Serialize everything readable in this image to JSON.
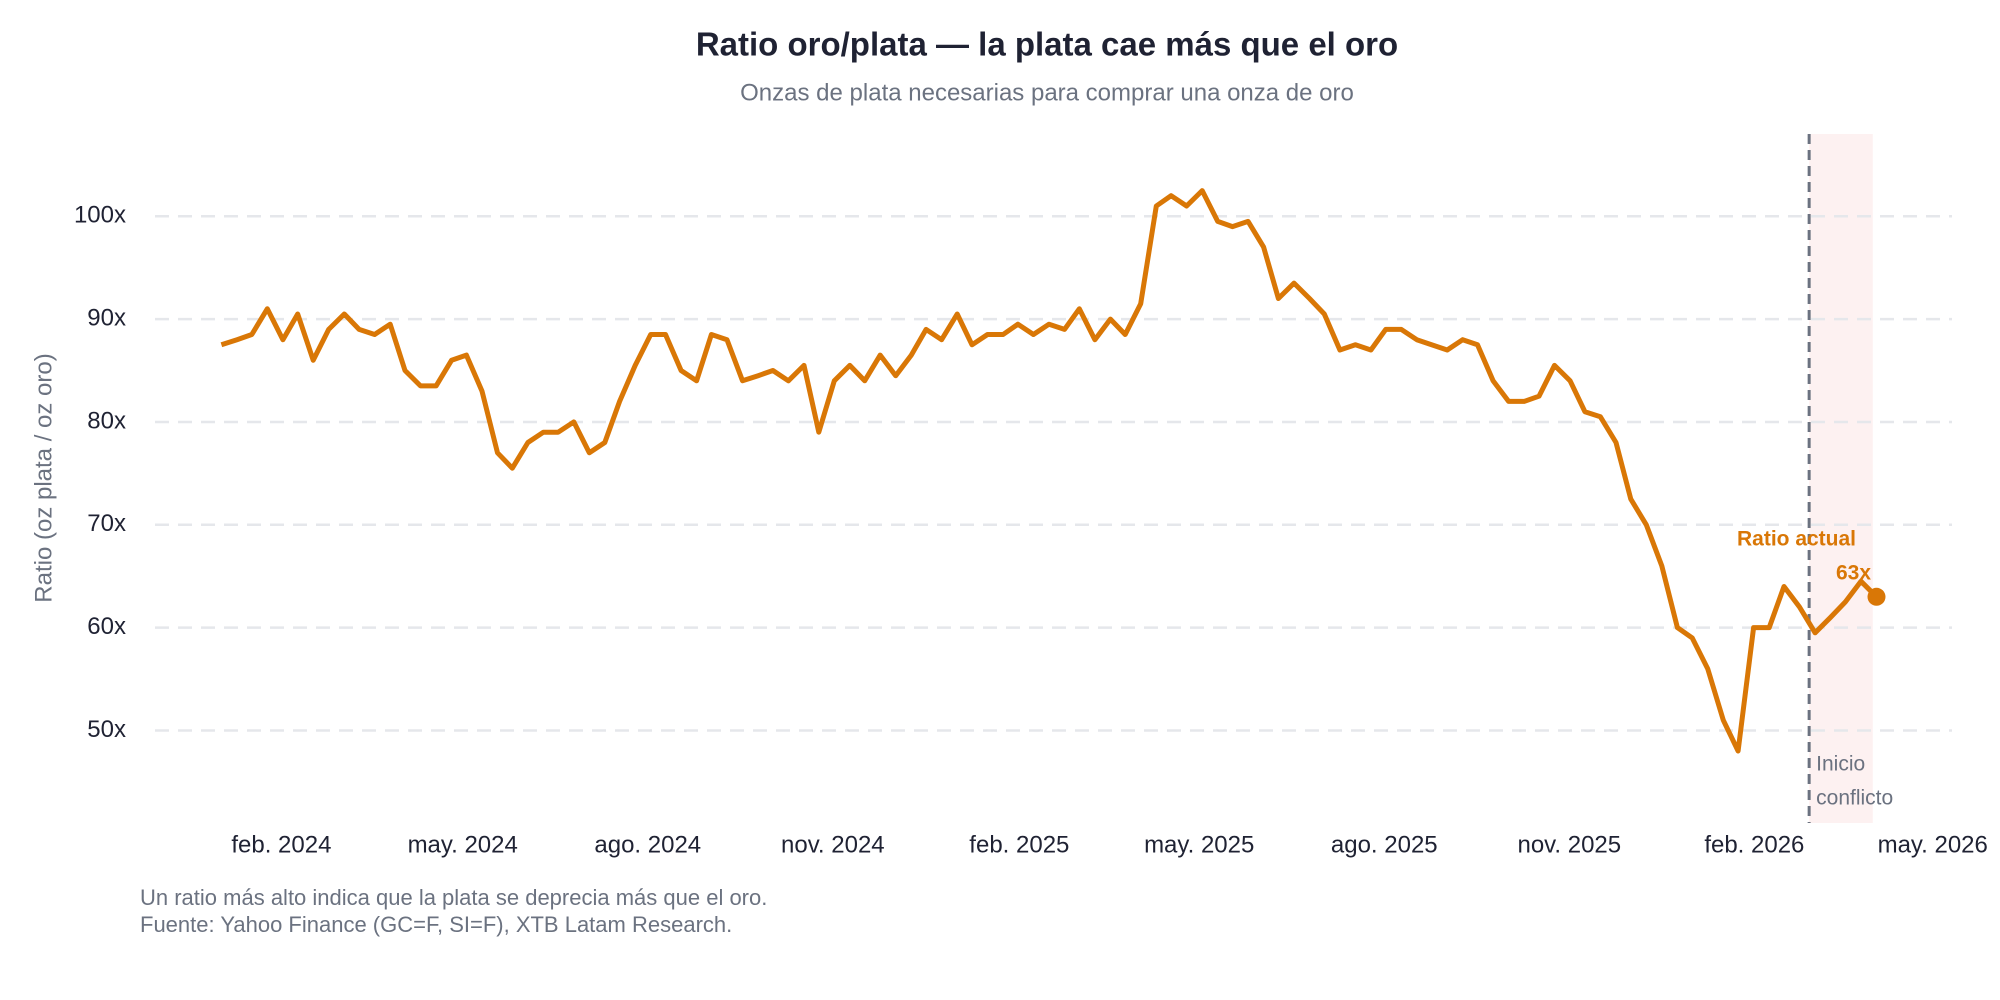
{
  "chart_data": {
    "type": "line",
    "title": "Ratio oro/plata — la plata cae más que el oro",
    "subtitle": "Onzas de plata necesarias para comprar una onza de oro",
    "y_label": "Ratio (oz plata / oz oro)",
    "note": "Un ratio más alto indica que la plata se deprecia más que el oro.",
    "source": "Fuente: Yahoo Finance (GC=F, SI=F), XTB Latam Research.",
    "xlim": [
      2023.894,
      2026.342
    ],
    "xticks": [
      {
        "value": 2024.085,
        "label": "feb. 2024"
      },
      {
        "value": 2024.33,
        "label": "may. 2024"
      },
      {
        "value": 2024.58,
        "label": "ago. 2024"
      },
      {
        "value": 2024.83,
        "label": "nov. 2024"
      },
      {
        "value": 2025.082,
        "label": "feb. 2025"
      },
      {
        "value": 2025.325,
        "label": "may. 2025"
      },
      {
        "value": 2025.575,
        "label": "ago. 2025"
      },
      {
        "value": 2025.825,
        "label": "nov. 2025"
      },
      {
        "value": 2026.075,
        "label": "feb. 2026"
      },
      {
        "value": 2026.316,
        "label": "may. 2026"
      }
    ],
    "ylim": [
      41,
      108
    ],
    "yticks": [
      {
        "value": 50,
        "label": "50x"
      },
      {
        "value": 60,
        "label": "60x"
      },
      {
        "value": 70,
        "label": "70x"
      },
      {
        "value": 80,
        "label": "80x"
      },
      {
        "value": 90,
        "label": "90x"
      },
      {
        "value": 100,
        "label": "100x"
      }
    ],
    "grid": true,
    "x": [
      2024.004,
      2024.025,
      2024.045,
      2024.066,
      2024.087,
      2024.107,
      2024.128,
      2024.149,
      2024.17,
      2024.19,
      2024.211,
      2024.232,
      2024.252,
      2024.273,
      2024.294,
      2024.315,
      2024.335,
      2024.356,
      2024.377,
      2024.397,
      2024.418,
      2024.439,
      2024.459,
      2024.48,
      2024.501,
      2024.522,
      2024.542,
      2024.563,
      2024.584,
      2024.604,
      2024.625,
      2024.646,
      2024.666,
      2024.687,
      2024.708,
      2024.729,
      2024.749,
      2024.77,
      2024.791,
      2024.811,
      2024.832,
      2024.853,
      2024.873,
      2024.894,
      2024.915,
      2024.936,
      2024.956,
      2024.977,
      2024.998,
      2025.018,
      2025.039,
      2025.06,
      2025.08,
      2025.101,
      2025.122,
      2025.143,
      2025.163,
      2025.184,
      2025.205,
      2025.225,
      2025.246,
      2025.267,
      2025.287,
      2025.308,
      2025.329,
      2025.35,
      2025.37,
      2025.391,
      2025.412,
      2025.432,
      2025.453,
      2025.474,
      2025.494,
      2025.515,
      2025.536,
      2025.557,
      2025.577,
      2025.598,
      2025.619,
      2025.639,
      2025.66,
      2025.681,
      2025.701,
      2025.722,
      2025.743,
      2025.764,
      2025.784,
      2025.805,
      2025.826,
      2025.846,
      2025.867,
      2025.888,
      2025.908,
      2025.929,
      2025.95,
      2025.971,
      2025.991,
      2026.012,
      2026.033,
      2026.053,
      2026.074,
      2026.095,
      2026.115,
      2026.136,
      2026.157,
      2026.178,
      2026.198,
      2026.219,
      2026.24
    ],
    "series": [
      {
        "name": "Ratio oro/plata",
        "color": "#d97706",
        "values": [
          87.5,
          88,
          88.5,
          91,
          88,
          90.5,
          86,
          89,
          90.5,
          89,
          88.5,
          89.5,
          85,
          83.5,
          83.5,
          86,
          86.5,
          83,
          77,
          75.5,
          78,
          79,
          79,
          80,
          77,
          78,
          82,
          85.5,
          88.5,
          88.5,
          85,
          84,
          88.5,
          88,
          84,
          84.5,
          85,
          84,
          85.5,
          79,
          84,
          85.5,
          84,
          86.5,
          84.5,
          86.5,
          89,
          88,
          90.5,
          87.5,
          88.5,
          88.5,
          89.5,
          88.5,
          89.5,
          89,
          91,
          88,
          90,
          88.5,
          91.5,
          101,
          102,
          101,
          102.5,
          99.5,
          99,
          99.5,
          97,
          92,
          93.5,
          92,
          90.5,
          87,
          87.5,
          87,
          89,
          89,
          88,
          87.5,
          87,
          88,
          87.5,
          84,
          82,
          82,
          82.5,
          85.5,
          84,
          81,
          80.5,
          78,
          72.5,
          70,
          66,
          60,
          59,
          56,
          51,
          48,
          60,
          60,
          64,
          62,
          59.5,
          61,
          62.5,
          64.5,
          63
        ]
      }
    ],
    "event": {
      "x": 2026.149,
      "shade_end": 2026.235,
      "label": [
        "Inicio",
        "conflicto"
      ]
    },
    "current": {
      "label": "Ratio actual",
      "value": 63,
      "value_label": "63x"
    }
  }
}
